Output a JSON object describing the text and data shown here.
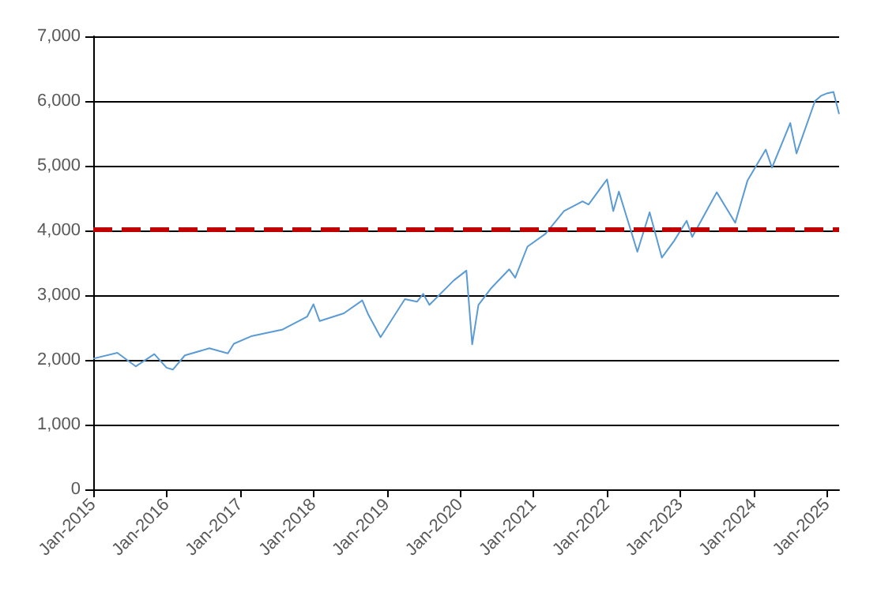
{
  "chart_data": {
    "type": "line",
    "x": [
      "2015-01",
      "2015-05",
      "2015-08",
      "2015-11",
      "2016-01",
      "2016-02",
      "2016-04",
      "2016-08",
      "2016-11",
      "2016-12",
      "2017-03",
      "2017-08",
      "2017-12",
      "2018-01",
      "2018-02",
      "2018-06",
      "2018-09",
      "2018-10",
      "2018-12",
      "2019-04",
      "2019-06",
      "2019-07",
      "2019-08",
      "2019-12",
      "2020-02",
      "2020-03",
      "2020-04",
      "2020-06",
      "2020-09",
      "2020-10",
      "2020-12",
      "2021-03",
      "2021-06",
      "2021-09",
      "2021-10",
      "2022-01",
      "2022-02",
      "2022-03",
      "2022-06",
      "2022-08",
      "2022-10",
      "2022-12",
      "2023-02",
      "2023-03",
      "2023-07",
      "2023-10",
      "2023-12",
      "2024-03",
      "2024-04",
      "2024-07",
      "2024-08",
      "2024-11",
      "2024-12",
      "2025-01",
      "2025-02",
      "2025-03"
    ],
    "series": [
      {
        "color": "#5b9bd5",
        "values": [
          2020,
          2110,
          1900,
          2090,
          1880,
          1850,
          2070,
          2180,
          2100,
          2250,
          2370,
          2470,
          2670,
          2860,
          2600,
          2720,
          2920,
          2700,
          2350,
          2940,
          2900,
          3020,
          2850,
          3230,
          3380,
          2240,
          2850,
          3100,
          3400,
          3270,
          3750,
          3950,
          4300,
          4450,
          4400,
          4790,
          4300,
          4600,
          3670,
          4280,
          3580,
          3840,
          4150,
          3900,
          4590,
          4120,
          4770,
          5250,
          4970,
          5660,
          5190,
          6000,
          6080,
          6120,
          6140,
          5800
        ]
      }
    ],
    "xlim": [
      "2015-01",
      "2025-03"
    ],
    "xticks": [
      {
        "value": "2015-01",
        "label": "Jan-2015"
      },
      {
        "value": "2016-01",
        "label": "Jan-2016"
      },
      {
        "value": "2017-01",
        "label": "Jan-2017"
      },
      {
        "value": "2018-01",
        "label": "Jan-2018"
      },
      {
        "value": "2019-01",
        "label": "Jan-2019"
      },
      {
        "value": "2020-01",
        "label": "Jan-2020"
      },
      {
        "value": "2021-01",
        "label": "Jan-2021"
      },
      {
        "value": "2022-01",
        "label": "Jan-2022"
      },
      {
        "value": "2023-01",
        "label": "Jan-2023"
      },
      {
        "value": "2024-01",
        "label": "Jan-2024"
      },
      {
        "value": "2025-01",
        "label": "Jan-2025"
      }
    ],
    "ylim": [
      0,
      7000
    ],
    "yticks": [
      {
        "value": 0,
        "label": "0"
      },
      {
        "value": 1000,
        "label": "1,000"
      },
      {
        "value": 2000,
        "label": "2,000"
      },
      {
        "value": 3000,
        "label": "3,000"
      },
      {
        "value": 4000,
        "label": "4,000"
      },
      {
        "value": 5000,
        "label": "5,000"
      },
      {
        "value": 6000,
        "label": "6,000"
      },
      {
        "value": 7000,
        "label": "7,000"
      }
    ],
    "grid": "y",
    "ref_lines": [
      {
        "axis": "y",
        "value": 4030,
        "color": "#c00000",
        "line_style": "dashed"
      }
    ]
  }
}
